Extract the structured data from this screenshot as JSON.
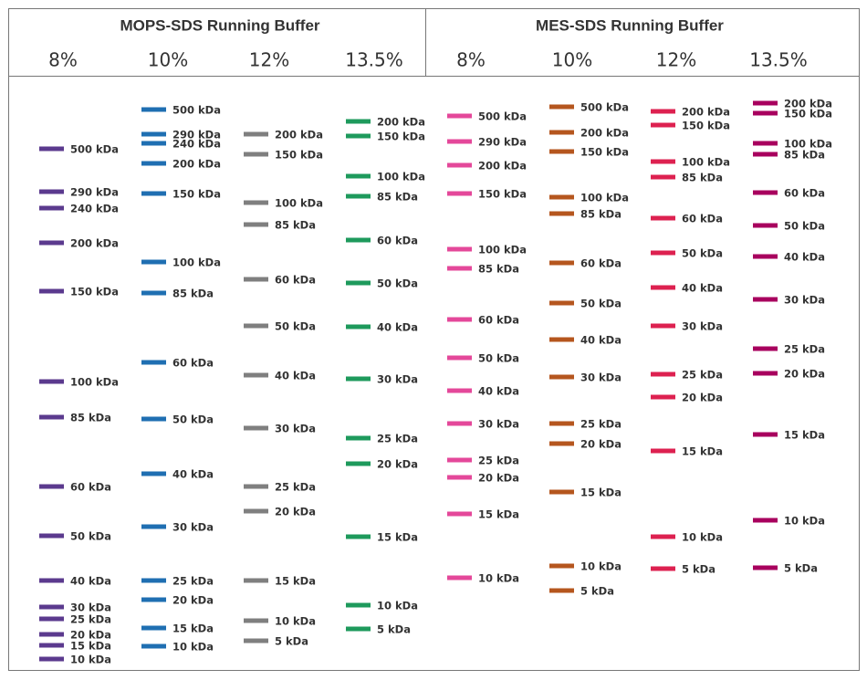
{
  "groups": [
    {
      "title": "MOPS-SDS Running Buffer",
      "lanes": [
        {
          "label": "8%",
          "color": "#5b3a8e",
          "bands": [
            "500 kDa",
            "290 kDa",
            "240 kDa",
            "200 kDa",
            "150 kDa",
            "100 kDa",
            "85 kDa",
            "60 kDa",
            "50 kDa",
            "40 kDa",
            "30 kDa",
            "25 kDa",
            "20 kDa",
            "15 kDa",
            "10 kDa"
          ]
        },
        {
          "label": "10%",
          "color": "#1f6fb2",
          "bands": [
            "500 kDa",
            "290 kDa",
            "240 kDa",
            "200 kDa",
            "150 kDa",
            "100 kDa",
            "85 kDa",
            "60 kDa",
            "50 kDa",
            "40 kDa",
            "30 kDa",
            "25 kDa",
            "20 kDa",
            "15 kDa",
            "10 kDa"
          ]
        },
        {
          "label": "12%",
          "color": "#7f7f7f",
          "bands": [
            "200 kDa",
            "150 kDa",
            "100 kDa",
            "85 kDa",
            "60 kDa",
            "50 kDa",
            "40 kDa",
            "30 kDa",
            "25 kDa",
            "20 kDa",
            "15 kDa",
            "10 kDa",
            "5 kDa"
          ]
        },
        {
          "label": "13.5%",
          "color": "#1e9a5c",
          "bands": [
            "200 kDa",
            "150 kDa",
            "100 kDa",
            "85 kDa",
            "60 kDa",
            "50 kDa",
            "40 kDa",
            "30 kDa",
            "25 kDa",
            "20 kDa",
            "15 kDa",
            "10 kDa",
            "5 kDa"
          ]
        }
      ]
    },
    {
      "title": "MES-SDS Running Buffer",
      "lanes": [
        {
          "label": "8%",
          "color": "#e4489a",
          "bands": [
            "500 kDa",
            "290 kDa",
            "200 kDa",
            "150 kDa",
            "100 kDa",
            "85 kDa",
            "60 kDa",
            "50 kDa",
            "40 kDa",
            "30 kDa",
            "25 kDa",
            "20 kDa",
            "15 kDa",
            "10 kDa"
          ]
        },
        {
          "label": "10%",
          "color": "#b5561e",
          "bands": [
            "500 kDa",
            "200 kDa",
            "150 kDa",
            "100 kDa",
            "85 kDa",
            "60 kDa",
            "50 kDa",
            "40 kDa",
            "30 kDa",
            "25 kDa",
            "20 kDa",
            "15 kDa",
            "10 kDa",
            "5 kDa"
          ]
        },
        {
          "label": "12%",
          "color": "#dd2150",
          "bands": [
            "200 kDa",
            "150 kDa",
            "100 kDa",
            "85 kDa",
            "60 kDa",
            "50 kDa",
            "40 kDa",
            "30 kDa",
            "25 kDa",
            "20 kDa",
            "15 kDa",
            "10 kDa",
            "5 kDa"
          ]
        },
        {
          "label": "13.5%",
          "color": "#a8005e",
          "bands": [
            "200 kDa",
            "150 kDa",
            "100 kDa",
            "85 kDa",
            "60 kDa",
            "50 kDa",
            "40 kDa",
            "30 kDa",
            "25 kDa",
            "20 kDa",
            "15 kDa",
            "10 kDa",
            "5 kDa"
          ]
        }
      ]
    }
  ]
}
